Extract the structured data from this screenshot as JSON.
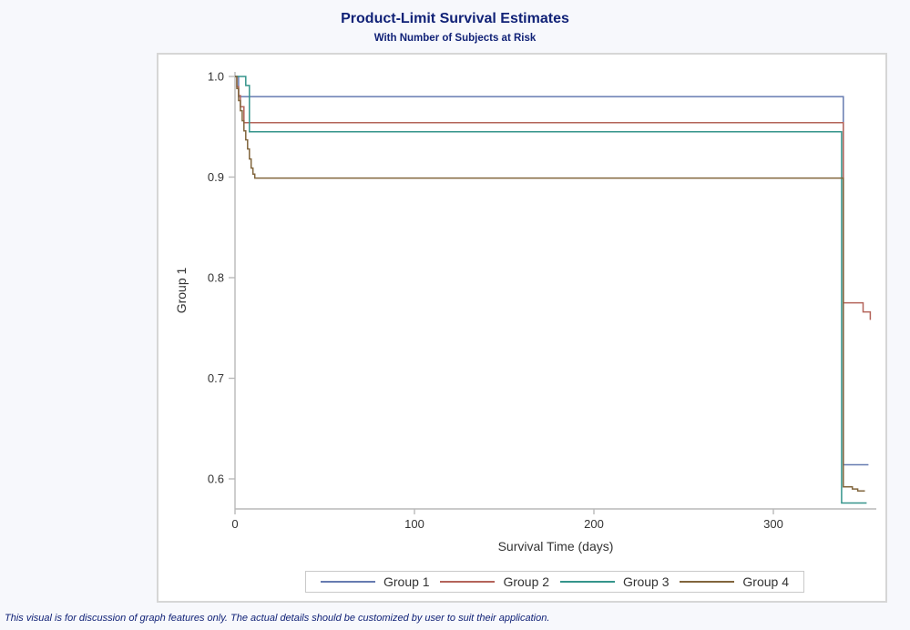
{
  "header": {
    "title": "Product-Limit Survival Estimates",
    "subtitle": "With Number of Subjects at Risk"
  },
  "footnote": "This visual is for discussion of graph features only. The actual details should be customized by user to suit their application.",
  "colors": {
    "title_text": "#112277",
    "axis_line": "#b8b8b8",
    "tick_text": "#333333",
    "panel_border": "#d6d6d6",
    "page_background": "#f7f8fc"
  },
  "chart_data": {
    "type": "line",
    "subtype": "step-survival",
    "title": "Product-Limit Survival Estimates",
    "subtitle": "With Number of Subjects at Risk",
    "xlabel": "Survival Time (days)",
    "ylabel": "Group 1",
    "xlim": [
      0,
      356
    ],
    "ylim": [
      0.57,
      1.005
    ],
    "grid": false,
    "legend_position": "bottom",
    "xticks": [
      {
        "label": "0",
        "value": 0
      },
      {
        "label": "100",
        "value": 100
      },
      {
        "label": "200",
        "value": 200
      },
      {
        "label": "300",
        "value": 300
      }
    ],
    "yticks": [
      {
        "label": "1.0",
        "value": 1.0
      },
      {
        "label": "0.9",
        "value": 0.9
      },
      {
        "label": "0.8",
        "value": 0.8
      },
      {
        "label": "0.7",
        "value": 0.7
      },
      {
        "label": "0.6",
        "value": 0.6
      }
    ],
    "series": [
      {
        "name": "Group 1",
        "color": "#667bb0",
        "points": [
          [
            0,
            1.0
          ],
          [
            2,
            0.98
          ],
          [
            339,
            0.614
          ],
          [
            353,
            0.614
          ]
        ]
      },
      {
        "name": "Group 2",
        "color": "#b4645a",
        "points": [
          [
            0,
            1.0
          ],
          [
            1,
            0.99
          ],
          [
            2,
            0.981
          ],
          [
            3,
            0.97
          ],
          [
            5,
            0.954
          ],
          [
            339,
            0.775
          ],
          [
            350,
            0.766
          ],
          [
            354,
            0.758
          ]
        ]
      },
      {
        "name": "Group 3",
        "color": "#35948b",
        "points": [
          [
            0,
            1.0
          ],
          [
            6,
            0.991
          ],
          [
            8,
            0.945
          ],
          [
            338,
            0.576
          ],
          [
            352,
            0.576
          ]
        ]
      },
      {
        "name": "Group 4",
        "color": "#81653c",
        "points": [
          [
            0,
            1.0
          ],
          [
            1,
            0.988
          ],
          [
            2,
            0.976
          ],
          [
            3,
            0.966
          ],
          [
            4,
            0.956
          ],
          [
            5,
            0.946
          ],
          [
            6,
            0.937
          ],
          [
            7,
            0.928
          ],
          [
            8,
            0.918
          ],
          [
            9,
            0.909
          ],
          [
            10,
            0.903
          ],
          [
            11,
            0.899
          ],
          [
            339,
            0.592
          ],
          [
            344,
            0.59
          ],
          [
            347,
            0.588
          ],
          [
            351,
            0.588
          ]
        ]
      }
    ]
  }
}
